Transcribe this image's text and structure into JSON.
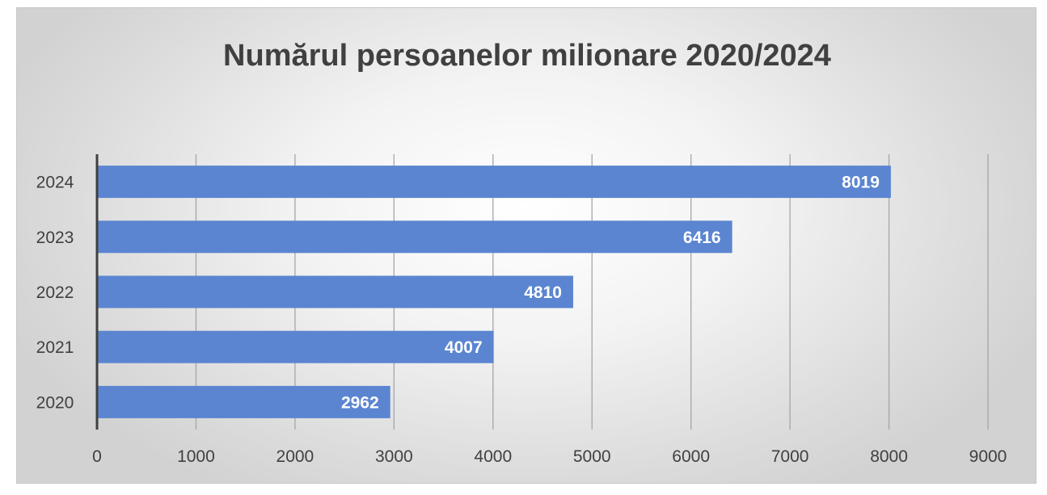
{
  "chart_data": {
    "type": "bar",
    "orientation": "horizontal",
    "title": "Numărul persoanelor milionare 2020/2024",
    "categories": [
      "2024",
      "2023",
      "2022",
      "2021",
      "2020"
    ],
    "values": [
      8019,
      6416,
      4810,
      4007,
      2962
    ],
    "data_labels": [
      "8019",
      "6416",
      "4810",
      "4007",
      "2962"
    ],
    "xlim": [
      0,
      9000
    ],
    "x_ticks": [
      "0",
      "1000",
      "2000",
      "3000",
      "4000",
      "5000",
      "6000",
      "7000",
      "8000",
      "9000"
    ],
    "xlabel": "",
    "ylabel": "",
    "grid": "vertical",
    "legend": "none",
    "bar_color": "#5b85d0",
    "background_color": "#e6e6e6"
  }
}
